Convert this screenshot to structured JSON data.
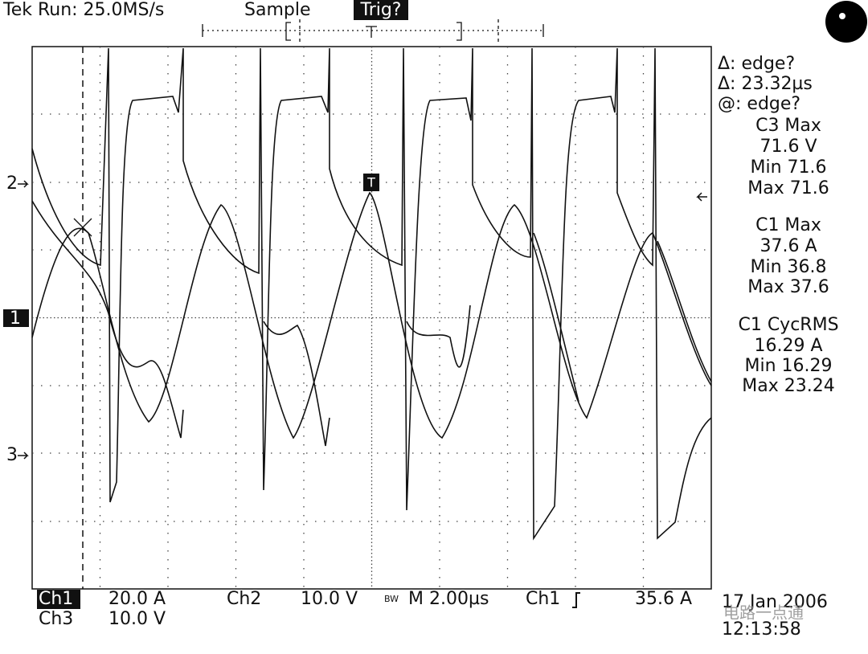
{
  "header": {
    "run": "Tek Run: 25.0MS/s",
    "mode": "Sample",
    "trigger": "Trig?"
  },
  "readout": [
    "Δ: edge?",
    "Δ: 23.32µs",
    "@: edge?",
    "C3 Max",
    "71.6 V",
    "Min 71.6",
    "Max 71.6",
    "C1 Max",
    "37.6 A",
    "Min 36.8",
    "Max 37.6",
    "C1 CycRMS",
    "16.29 A",
    "Min 16.29",
    "Max 23.24"
  ],
  "markers": {
    "ch2": "2",
    "ch1": "1",
    "ch3": "3",
    "trigger": "T"
  },
  "footer": {
    "ch1": "Ch1",
    "ch1_scale": "20.0 A",
    "ch2": "Ch2",
    "ch2_scale": "10.0 V",
    "bw": "BW",
    "timebase": "M 2.00µs",
    "trig_source": "Ch1",
    "trig_level": "35.6 A",
    "ch3": "Ch3",
    "ch3_scale": "10.0 V",
    "date": "17 Jan 2006",
    "time": "12:13:58"
  },
  "watermark": "电路一点通"
}
